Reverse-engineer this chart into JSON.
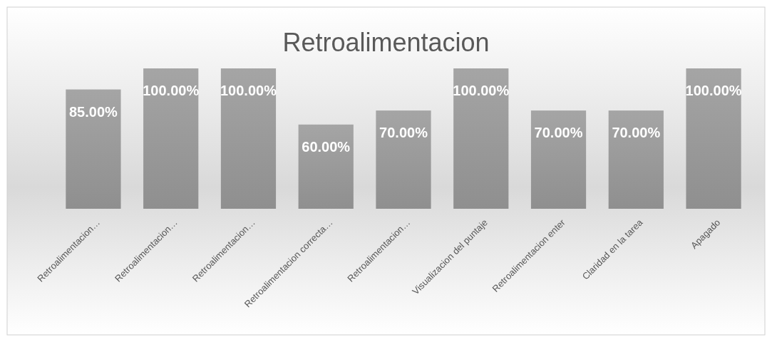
{
  "chart_data": {
    "type": "bar",
    "title": "Retroalimentacion",
    "categories": [
      "Retroalimentacion…",
      "Retroalimentacion…",
      "Retroalimentacion…",
      "Retroalimentacion correcta…",
      "Retroalimentacion…",
      "Visualizacion del puntaje",
      "Retroalimentacion enter",
      "Claridad en la tarea",
      "Apagado"
    ],
    "values": [
      85,
      100,
      100,
      60,
      70,
      100,
      70,
      70,
      100
    ],
    "value_labels": [
      "85.00%",
      "100.00%",
      "100.00%",
      "60.00%",
      "70.00%",
      "100.00%",
      "70.00%",
      "70.00%",
      "100.00%"
    ],
    "color": "#9a9a9a"
  }
}
